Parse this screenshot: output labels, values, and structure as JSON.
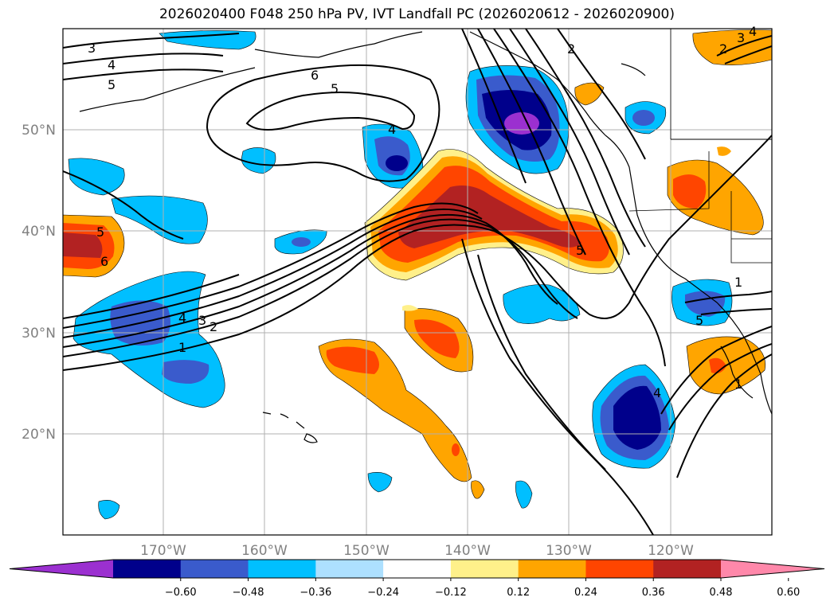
{
  "title": "2026020400 F048 250 hPa PV, IVT Landfall PC (2026020612 - 2026020900)",
  "lat_labels": [
    "50°N",
    "40°N",
    "30°N",
    "20°N"
  ],
  "lon_labels": [
    "170°W",
    "160°W",
    "150°W",
    "140°W",
    "130°W",
    "120°W"
  ],
  "colorbar": {
    "ticks": [
      "−0.60",
      "−0.48",
      "−0.36",
      "−0.24",
      "−0.12",
      "0.12",
      "0.24",
      "0.36",
      "0.48",
      "0.60"
    ],
    "colors": [
      "#9b30d0",
      "#00008b",
      "#3a5bcc",
      "#00bfff",
      "#ade0ff",
      "#ffffff",
      "#fff08a",
      "#ffa500",
      "#ff4500",
      "#b22222",
      "#ff88aa"
    ]
  },
  "contour_labels": [
    "3",
    "4",
    "5",
    "6",
    "5",
    "4",
    "2",
    "3",
    "4",
    "2",
    "5",
    "6",
    "4",
    "3",
    "2",
    "1",
    "5",
    "1",
    "5",
    "1",
    "4"
  ]
}
